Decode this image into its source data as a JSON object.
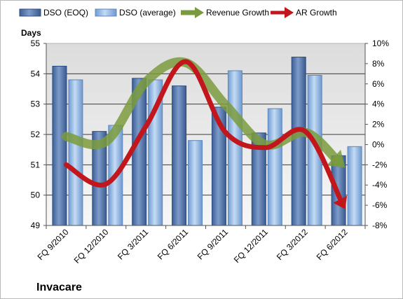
{
  "chart_data": {
    "type": "bar",
    "company": "Invacare",
    "ylabel": "Days",
    "ylim": [
      49,
      55
    ],
    "y2lim": [
      -8,
      10
    ],
    "yticks": [
      49,
      50,
      51,
      52,
      53,
      54,
      55
    ],
    "y2ticks": [
      "-8%",
      "-6%",
      "-4%",
      "-2%",
      "0%",
      "2%",
      "4%",
      "6%",
      "8%",
      "10%"
    ],
    "categories": [
      "FQ 9/2010",
      "FQ 12/2010",
      "FQ 3/2011",
      "FQ 6/2011",
      "FQ 9/2011",
      "FQ 12/2011",
      "FQ 3/2012",
      "FQ 6/2012"
    ],
    "grid": true,
    "legend_position": "top",
    "series": [
      {
        "name": "DSO (EOQ)",
        "kind": "bar",
        "axis": "left",
        "color": "#4f71a8",
        "values": [
          54.25,
          52.1,
          53.85,
          53.6,
          52.9,
          52.05,
          54.55,
          51.3
        ]
      },
      {
        "name": "DSO (average)",
        "kind": "bar",
        "axis": "left",
        "color": "#8fb4e3",
        "values": [
          53.8,
          52.3,
          53.8,
          51.8,
          54.1,
          52.85,
          53.95,
          51.6
        ]
      },
      {
        "name": "Revenue Growth",
        "kind": "line",
        "axis": "right",
        "color": "#7a9b3d",
        "values": [
          0.8,
          0.3,
          6.2,
          8.1,
          3.9,
          0.0,
          1.2,
          -2.3
        ]
      },
      {
        "name": "AR Growth",
        "kind": "line",
        "axis": "right",
        "color": "#c0161c",
        "values": [
          -2.0,
          -3.9,
          1.8,
          8.2,
          1.2,
          -0.3,
          1.3,
          -6.4
        ]
      }
    ]
  }
}
